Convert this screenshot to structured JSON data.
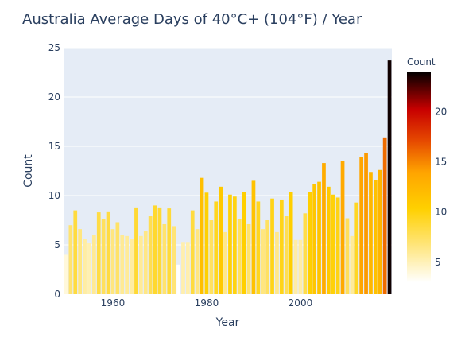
{
  "chart_data": {
    "type": "bar",
    "title": "Australia Average Days of 40°C+ (104°F) / Year",
    "xlabel": "Year",
    "ylabel": "Count",
    "xlim": [
      1949.5,
      2019.5
    ],
    "ylim": [
      0,
      25
    ],
    "x_ticks": [
      1960,
      1980,
      2000
    ],
    "y_ticks": [
      0,
      5,
      10,
      15,
      20,
      25
    ],
    "grid": true,
    "colorbar": {
      "title": "Count",
      "range": [
        3,
        24
      ],
      "ticks": [
        5,
        10,
        15,
        20
      ],
      "colorscale": [
        "#ffffff",
        "#ffe680",
        "#ffd000",
        "#ffa500",
        "#e64a00",
        "#c80000",
        "#000000"
      ]
    },
    "x": [
      1950,
      1951,
      1952,
      1953,
      1954,
      1955,
      1956,
      1957,
      1958,
      1959,
      1960,
      1961,
      1962,
      1963,
      1964,
      1965,
      1966,
      1967,
      1968,
      1969,
      1970,
      1971,
      1972,
      1973,
      1974,
      1975,
      1976,
      1977,
      1978,
      1979,
      1980,
      1981,
      1982,
      1983,
      1984,
      1985,
      1986,
      1987,
      1988,
      1989,
      1990,
      1991,
      1992,
      1993,
      1994,
      1995,
      1996,
      1997,
      1998,
      1999,
      2000,
      2001,
      2002,
      2003,
      2004,
      2005,
      2006,
      2007,
      2008,
      2009,
      2010,
      2011,
      2012,
      2013,
      2014,
      2015,
      2016,
      2017,
      2018,
      2019
    ],
    "values": [
      4.0,
      7.0,
      8.5,
      6.6,
      5.6,
      5.2,
      6.0,
      8.3,
      7.6,
      8.4,
      6.6,
      7.3,
      6.0,
      5.9,
      5.6,
      8.8,
      5.9,
      6.4,
      7.9,
      9.0,
      8.8,
      7.1,
      8.7,
      6.9,
      3.0,
      5.3,
      5.3,
      8.5,
      6.6,
      11.8,
      10.3,
      7.5,
      9.4,
      10.9,
      6.3,
      10.1,
      9.9,
      7.6,
      10.4,
      7.1,
      11.5,
      9.4,
      6.6,
      7.5,
      9.7,
      6.3,
      9.6,
      7.9,
      10.4,
      5.5,
      5.5,
      8.2,
      10.4,
      11.2,
      11.4,
      13.3,
      10.9,
      10.1,
      9.8,
      13.5,
      7.7,
      5.9,
      9.3,
      13.9,
      14.3,
      12.4,
      11.6,
      12.6,
      15.9,
      23.7
    ]
  }
}
